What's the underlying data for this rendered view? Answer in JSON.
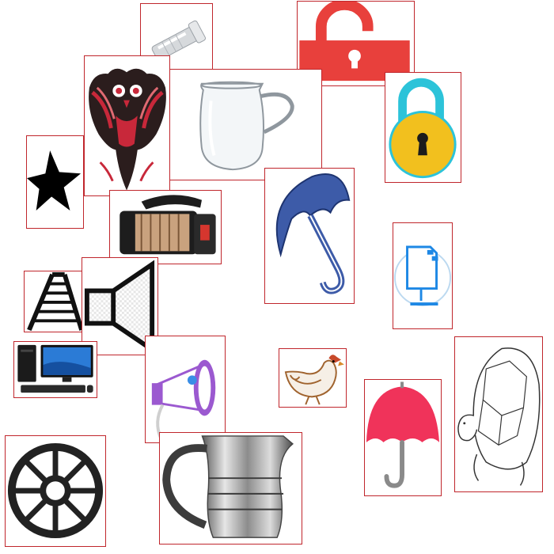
{
  "canvas": {
    "background": "#ffffff",
    "tile_border_color": "#c0262c"
  },
  "tiles": [
    {
      "id": "flashlight-silver",
      "icon": "flashlight-icon"
    },
    {
      "id": "lock-open-red",
      "icon": "unlocked-padlock-icon",
      "color": "#e8403c"
    },
    {
      "id": "owl-totem",
      "icon": "owl-tribal-art-icon"
    },
    {
      "id": "glass-pitcher",
      "icon": "glass-pitcher-icon"
    },
    {
      "id": "padlock-yellow",
      "icon": "padlock-icon",
      "color": "#f2c01e"
    },
    {
      "id": "star-black",
      "icon": "star-icon",
      "color": "#000000"
    },
    {
      "id": "umbrella-blue",
      "icon": "umbrella-icon",
      "color": "#3d5ba8"
    },
    {
      "id": "searchlight",
      "icon": "searchlight-icon"
    },
    {
      "id": "computer-monitor-blue",
      "icon": "computer-monitor-icon",
      "color": "#1e88e5"
    },
    {
      "id": "ladder",
      "icon": "ladder-icon"
    },
    {
      "id": "speaker-outline",
      "icon": "speaker-icon"
    },
    {
      "id": "desktop-computer",
      "icon": "desktop-computer-icon"
    },
    {
      "id": "megaphone",
      "icon": "megaphone-icon",
      "color": "#9b59d0"
    },
    {
      "id": "hen",
      "icon": "hen-icon",
      "color": "#a0632e"
    },
    {
      "id": "tortoise",
      "icon": "tortoise-icon"
    },
    {
      "id": "umbrella-red",
      "icon": "umbrella-icon",
      "color": "#f0335a"
    },
    {
      "id": "wheel",
      "icon": "wheel-icon",
      "color": "#222222"
    },
    {
      "id": "steel-jug",
      "icon": "steel-jug-icon"
    }
  ]
}
